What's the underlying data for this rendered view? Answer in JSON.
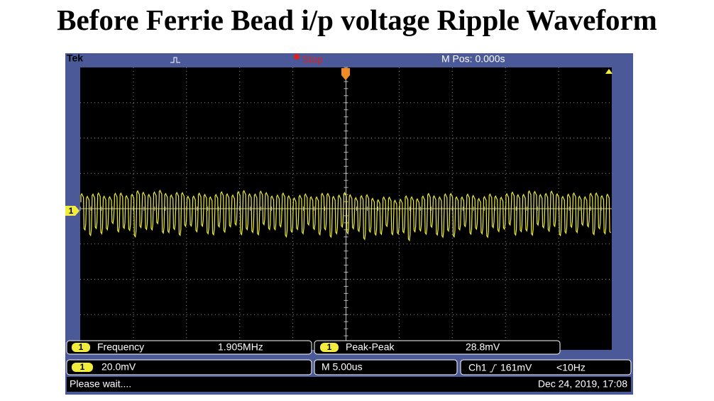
{
  "header": {
    "title": "Before Ferrie Bead i/p voltage Ripple Waveform"
  },
  "status_bar": {
    "brand": "Tek",
    "state": "Stop",
    "position": "M Pos: 0.000s"
  },
  "ground_marker": "1",
  "measurements": [
    {
      "channel": "1",
      "name": "Frequency",
      "value": "1.905MHz"
    },
    {
      "channel": "1",
      "name": "Peak-Peak",
      "value": "28.8mV"
    }
  ],
  "settings": {
    "channel_scale": {
      "channel": "1",
      "value": "20.0mV"
    },
    "timebase": "M 5.00us",
    "trigger": {
      "source": "Ch1",
      "level": "161mV",
      "frequency": "<10Hz"
    }
  },
  "message": "Please wait....",
  "timestamp": "Dec 24, 2019, 17:08"
}
